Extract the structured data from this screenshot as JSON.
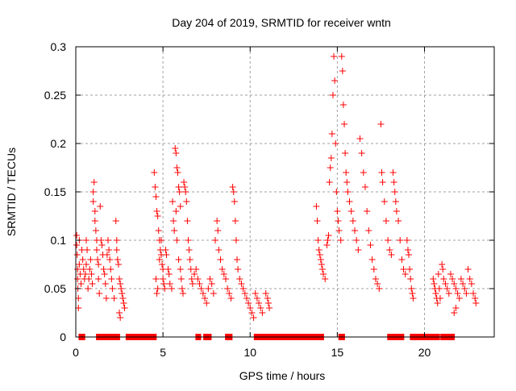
{
  "chart_data": {
    "type": "scatter",
    "title": "Day 204 of 2019, SRMTID for receiver wntn",
    "xlabel": "GPS time / hours",
    "ylabel": "SRMTID / TECUs",
    "xlim": [
      0,
      24
    ],
    "ylim": [
      0,
      0.3
    ],
    "xticks": [
      0,
      5,
      10,
      15,
      20
    ],
    "xtick_labels": [
      "0",
      "5",
      "10",
      "15",
      "20"
    ],
    "yticks": [
      0,
      0.05,
      0.1,
      0.15,
      0.2,
      0.25,
      0.3
    ],
    "ytick_labels": [
      "0",
      "0.05",
      "0.1",
      "0.15",
      "0.2",
      "0.25",
      "0.3"
    ],
    "grid": true,
    "marker": "+",
    "color": "#ff0000",
    "series": [
      {
        "name": "SRMTID",
        "points": [
          [
            0.05,
            0.105
          ],
          [
            0.05,
            0.095
          ],
          [
            0.08,
            0.085
          ],
          [
            0.1,
            0.07
          ],
          [
            0.1,
            0.06
          ],
          [
            0.12,
            0.05
          ],
          [
            0.15,
            0.04
          ],
          [
            0.15,
            0.03
          ],
          [
            0.2,
            0.1
          ],
          [
            0.2,
            0.075
          ],
          [
            0.25,
            0.065
          ],
          [
            0.3,
            0.055
          ],
          [
            0.35,
            0.09
          ],
          [
            0.4,
            0.08
          ],
          [
            0.45,
            0.07
          ],
          [
            0.5,
            0.06
          ],
          [
            0.55,
            0.065
          ],
          [
            0.6,
            0.075
          ],
          [
            0.6,
            0.1
          ],
          [
            0.65,
            0.09
          ],
          [
            0.7,
            0.05
          ],
          [
            0.75,
            0.06
          ],
          [
            0.8,
            0.07
          ],
          [
            0.85,
            0.08
          ],
          [
            0.9,
            0.065
          ],
          [
            0.95,
            0.055
          ],
          [
            1.0,
            0.15
          ],
          [
            1.0,
            0.14
          ],
          [
            1.05,
            0.16
          ],
          [
            1.1,
            0.13
          ],
          [
            1.1,
            0.12
          ],
          [
            1.15,
            0.11
          ],
          [
            1.2,
            0.1
          ],
          [
            1.2,
            0.09
          ],
          [
            1.25,
            0.08
          ],
          [
            1.3,
            0.075
          ],
          [
            1.3,
            0.06
          ],
          [
            1.35,
            0.045
          ],
          [
            1.4,
            0.135
          ],
          [
            1.45,
            0.1
          ],
          [
            1.5,
            0.095
          ],
          [
            1.55,
            0.085
          ],
          [
            1.6,
            0.07
          ],
          [
            1.65,
            0.065
          ],
          [
            1.7,
            0.055
          ],
          [
            1.75,
            0.04
          ],
          [
            1.8,
            0.085
          ],
          [
            1.85,
            0.1
          ],
          [
            1.9,
            0.09
          ],
          [
            1.95,
            0.08
          ],
          [
            2.0,
            0.07
          ],
          [
            2.05,
            0.06
          ],
          [
            2.1,
            0.05
          ],
          [
            2.2,
            0.04
          ],
          [
            2.3,
            0.12
          ],
          [
            2.35,
            0.1
          ],
          [
            2.35,
            0.09
          ],
          [
            2.4,
            0.08
          ],
          [
            2.45,
            0.075
          ],
          [
            2.5,
            0.06
          ],
          [
            2.55,
            0.055
          ],
          [
            2.6,
            0.05
          ],
          [
            2.65,
            0.045
          ],
          [
            2.7,
            0.04
          ],
          [
            2.75,
            0.035
          ],
          [
            2.8,
            0.03
          ],
          [
            2.5,
            0.025
          ],
          [
            2.55,
            0.02
          ],
          [
            4.5,
            0.17
          ],
          [
            4.55,
            0.155
          ],
          [
            4.6,
            0.145
          ],
          [
            4.65,
            0.13
          ],
          [
            4.7,
            0.125
          ],
          [
            4.75,
            0.11
          ],
          [
            4.8,
            0.1
          ],
          [
            4.85,
            0.09
          ],
          [
            4.9,
            0.085
          ],
          [
            4.95,
            0.075
          ],
          [
            5.0,
            0.07
          ],
          [
            5.0,
            0.06
          ],
          [
            5.05,
            0.055
          ],
          [
            5.1,
            0.05
          ],
          [
            4.6,
            0.06
          ],
          [
            4.65,
            0.045
          ],
          [
            4.7,
            0.05
          ],
          [
            4.8,
            0.08
          ],
          [
            4.9,
            0.1
          ],
          [
            5.15,
            0.09
          ],
          [
            5.2,
            0.085
          ],
          [
            5.3,
            0.07
          ],
          [
            5.35,
            0.065
          ],
          [
            5.4,
            0.055
          ],
          [
            5.5,
            0.05
          ],
          [
            5.55,
            0.14
          ],
          [
            5.6,
            0.12
          ],
          [
            5.65,
            0.11
          ],
          [
            5.7,
            0.195
          ],
          [
            5.75,
            0.19
          ],
          [
            5.8,
            0.175
          ],
          [
            5.85,
            0.17
          ],
          [
            5.9,
            0.155
          ],
          [
            5.95,
            0.15
          ],
          [
            6.0,
            0.135
          ],
          [
            5.75,
            0.13
          ],
          [
            5.8,
            0.1
          ],
          [
            5.9,
            0.08
          ],
          [
            6.0,
            0.07
          ],
          [
            6.05,
            0.06
          ],
          [
            6.1,
            0.05
          ],
          [
            6.15,
            0.045
          ],
          [
            6.2,
            0.16
          ],
          [
            6.25,
            0.155
          ],
          [
            6.3,
            0.15
          ],
          [
            6.35,
            0.14
          ],
          [
            6.4,
            0.12
          ],
          [
            6.45,
            0.1
          ],
          [
            6.5,
            0.09
          ],
          [
            6.55,
            0.08
          ],
          [
            6.6,
            0.07
          ],
          [
            6.65,
            0.06
          ],
          [
            6.7,
            0.055
          ],
          [
            6.8,
            0.065
          ],
          [
            6.9,
            0.07
          ],
          [
            7.0,
            0.06
          ],
          [
            7.1,
            0.055
          ],
          [
            7.2,
            0.05
          ],
          [
            7.3,
            0.045
          ],
          [
            7.4,
            0.04
          ],
          [
            7.5,
            0.035
          ],
          [
            7.6,
            0.05
          ],
          [
            7.7,
            0.06
          ],
          [
            7.8,
            0.055
          ],
          [
            7.9,
            0.045
          ],
          [
            8.0,
            0.1
          ],
          [
            8.1,
            0.12
          ],
          [
            8.15,
            0.11
          ],
          [
            8.2,
            0.09
          ],
          [
            8.3,
            0.08
          ],
          [
            8.4,
            0.07
          ],
          [
            8.5,
            0.065
          ],
          [
            8.6,
            0.06
          ],
          [
            8.7,
            0.05
          ],
          [
            8.8,
            0.045
          ],
          [
            8.9,
            0.04
          ],
          [
            9.0,
            0.155
          ],
          [
            9.05,
            0.15
          ],
          [
            9.1,
            0.14
          ],
          [
            9.15,
            0.12
          ],
          [
            9.2,
            0.1
          ],
          [
            9.25,
            0.08
          ],
          [
            9.3,
            0.07
          ],
          [
            9.4,
            0.06
          ],
          [
            9.5,
            0.055
          ],
          [
            9.6,
            0.05
          ],
          [
            9.7,
            0.045
          ],
          [
            9.8,
            0.04
          ],
          [
            9.9,
            0.035
          ],
          [
            10.0,
            0.03
          ],
          [
            10.1,
            0.025
          ],
          [
            10.2,
            0.02
          ],
          [
            10.3,
            0.045
          ],
          [
            10.4,
            0.04
          ],
          [
            10.5,
            0.035
          ],
          [
            10.6,
            0.03
          ],
          [
            10.7,
            0.025
          ],
          [
            10.9,
            0.045
          ],
          [
            11.0,
            0.04
          ],
          [
            11.05,
            0.035
          ],
          [
            11.1,
            0.03
          ],
          [
            13.8,
            0.135
          ],
          [
            13.85,
            0.12
          ],
          [
            13.9,
            0.1
          ],
          [
            13.95,
            0.09
          ],
          [
            14.0,
            0.085
          ],
          [
            14.05,
            0.08
          ],
          [
            14.1,
            0.075
          ],
          [
            14.15,
            0.07
          ],
          [
            14.2,
            0.065
          ],
          [
            14.3,
            0.06
          ],
          [
            14.4,
            0.095
          ],
          [
            14.45,
            0.1
          ],
          [
            14.5,
            0.105
          ],
          [
            14.55,
            0.16
          ],
          [
            14.6,
            0.175
          ],
          [
            14.65,
            0.185
          ],
          [
            14.7,
            0.21
          ],
          [
            14.75,
            0.25
          ],
          [
            14.8,
            0.29
          ],
          [
            14.85,
            0.265
          ],
          [
            14.9,
            0.2
          ],
          [
            14.95,
            0.15
          ],
          [
            15.0,
            0.13
          ],
          [
            15.05,
            0.12
          ],
          [
            15.1,
            0.11
          ],
          [
            15.2,
            0.1
          ],
          [
            15.25,
            0.29
          ],
          [
            15.3,
            0.275
          ],
          [
            15.35,
            0.24
          ],
          [
            15.4,
            0.22
          ],
          [
            15.45,
            0.19
          ],
          [
            15.5,
            0.17
          ],
          [
            15.55,
            0.16
          ],
          [
            15.6,
            0.15
          ],
          [
            15.7,
            0.14
          ],
          [
            15.8,
            0.13
          ],
          [
            15.9,
            0.12
          ],
          [
            16.0,
            0.11
          ],
          [
            16.1,
            0.1
          ],
          [
            16.2,
            0.09
          ],
          [
            16.3,
            0.205
          ],
          [
            16.4,
            0.19
          ],
          [
            16.5,
            0.17
          ],
          [
            16.6,
            0.155
          ],
          [
            16.7,
            0.13
          ],
          [
            16.8,
            0.11
          ],
          [
            16.9,
            0.095
          ],
          [
            17.0,
            0.08
          ],
          [
            17.1,
            0.07
          ],
          [
            17.2,
            0.06
          ],
          [
            17.3,
            0.055
          ],
          [
            17.4,
            0.05
          ],
          [
            17.5,
            0.22
          ],
          [
            17.55,
            0.17
          ],
          [
            17.6,
            0.16
          ],
          [
            17.7,
            0.14
          ],
          [
            17.8,
            0.12
          ],
          [
            17.9,
            0.1
          ],
          [
            18.0,
            0.09
          ],
          [
            18.1,
            0.085
          ],
          [
            18.2,
            0.17
          ],
          [
            18.25,
            0.16
          ],
          [
            18.3,
            0.15
          ],
          [
            18.35,
            0.14
          ],
          [
            18.4,
            0.13
          ],
          [
            18.5,
            0.12
          ],
          [
            18.6,
            0.1
          ],
          [
            18.7,
            0.08
          ],
          [
            18.8,
            0.07
          ],
          [
            18.9,
            0.065
          ],
          [
            19.0,
            0.1
          ],
          [
            19.05,
            0.09
          ],
          [
            19.1,
            0.085
          ],
          [
            19.15,
            0.07
          ],
          [
            19.2,
            0.06
          ],
          [
            19.25,
            0.05
          ],
          [
            19.3,
            0.045
          ],
          [
            19.35,
            0.04
          ],
          [
            20.5,
            0.06
          ],
          [
            20.55,
            0.055
          ],
          [
            20.6,
            0.05
          ],
          [
            20.65,
            0.045
          ],
          [
            20.7,
            0.04
          ],
          [
            20.75,
            0.035
          ],
          [
            20.8,
            0.065
          ],
          [
            20.85,
            0.05
          ],
          [
            20.9,
            0.04
          ],
          [
            21.0,
            0.075
          ],
          [
            21.05,
            0.07
          ],
          [
            21.1,
            0.06
          ],
          [
            21.2,
            0.055
          ],
          [
            21.3,
            0.05
          ],
          [
            21.4,
            0.045
          ],
          [
            21.5,
            0.065
          ],
          [
            21.6,
            0.06
          ],
          [
            21.7,
            0.055
          ],
          [
            21.8,
            0.05
          ],
          [
            21.9,
            0.045
          ],
          [
            22.0,
            0.04
          ],
          [
            22.1,
            0.06
          ],
          [
            22.2,
            0.055
          ],
          [
            22.3,
            0.05
          ],
          [
            22.4,
            0.045
          ],
          [
            22.5,
            0.07
          ],
          [
            22.6,
            0.06
          ],
          [
            22.7,
            0.055
          ],
          [
            22.8,
            0.045
          ],
          [
            22.9,
            0.04
          ],
          [
            22.95,
            0.035
          ],
          [
            21.7,
            0.025
          ],
          [
            21.8,
            0.03
          ]
        ],
        "zero_segments": [
          [
            0.3,
            0.4
          ],
          [
            1.3,
            1.35
          ],
          [
            1.55,
            1.7
          ],
          [
            1.8,
            1.9
          ],
          [
            2.0,
            2.4
          ],
          [
            3.0,
            4.5
          ],
          [
            7.0,
            7.05
          ],
          [
            7.45,
            7.65
          ],
          [
            8.7,
            8.85
          ],
          [
            10.35,
            10.6
          ],
          [
            10.8,
            11.2
          ],
          [
            11.4,
            14.1
          ],
          [
            15.2,
            15.3
          ],
          [
            18.0,
            18.25
          ],
          [
            18.45,
            18.7
          ],
          [
            19.3,
            20.75
          ],
          [
            21.05,
            21.25
          ],
          [
            21.35,
            21.6
          ]
        ]
      }
    ]
  }
}
